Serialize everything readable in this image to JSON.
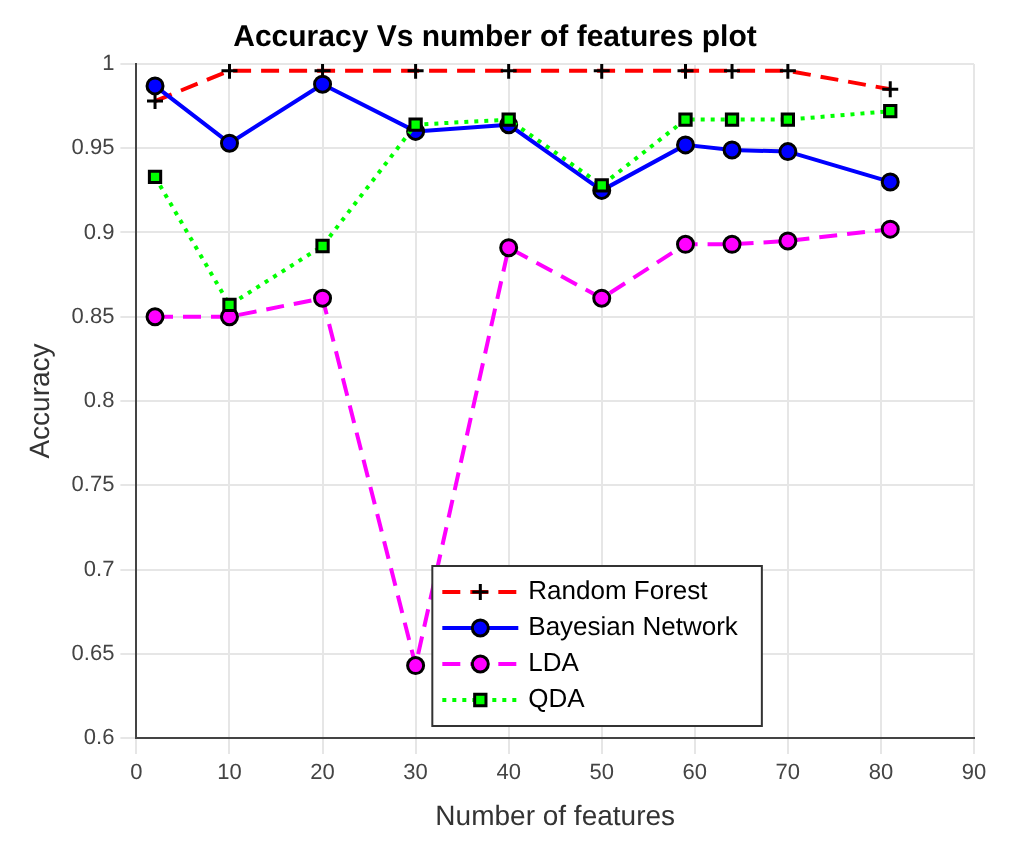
{
  "chart_data": {
    "type": "line",
    "title": "Accuracy Vs number of features plot",
    "xlabel": "Number of features",
    "ylabel": "Accuracy",
    "x": [
      2,
      10,
      20,
      30,
      40,
      50,
      59,
      64,
      70,
      81
    ],
    "series": [
      {
        "name": "Random Forest",
        "color": "#ff0000",
        "line_style": "dashed",
        "marker": "cross",
        "values": [
          0.978,
          0.996,
          0.996,
          0.996,
          0.996,
          0.996,
          0.996,
          0.996,
          0.996,
          0.985
        ]
      },
      {
        "name": "Bayesian Network",
        "color": "#0000ff",
        "line_style": "solid",
        "marker": "circle",
        "values": [
          0.987,
          0.953,
          0.988,
          0.96,
          0.964,
          0.925,
          0.952,
          0.949,
          0.948,
          0.93
        ]
      },
      {
        "name": "LDA",
        "color": "#ff00ff",
        "line_style": "dashed",
        "marker": "circle",
        "values": [
          0.85,
          0.85,
          0.861,
          0.643,
          0.891,
          0.861,
          0.893,
          0.893,
          0.895,
          0.902
        ]
      },
      {
        "name": "QDA",
        "color": "#00ff00",
        "line_style": "dotted",
        "marker": "square",
        "values": [
          0.933,
          0.857,
          0.892,
          0.964,
          0.967,
          0.928,
          0.967,
          0.967,
          0.967,
          0.972
        ]
      }
    ],
    "xlim": [
      0,
      90
    ],
    "xticks": [
      0,
      10,
      20,
      30,
      40,
      50,
      60,
      70,
      80,
      90
    ],
    "ylim": [
      0.6,
      1
    ],
    "yticks": [
      0.6,
      0.65,
      0.7,
      0.75,
      0.8,
      0.85,
      0.9,
      0.95,
      1
    ],
    "grid": true,
    "legend": "bottom"
  }
}
